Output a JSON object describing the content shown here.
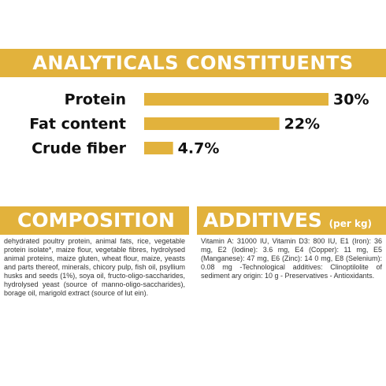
{
  "chart_data": {
    "type": "bar",
    "orientation": "horizontal",
    "title": "ANALYTICALS CONSTITUENTS",
    "categories": [
      "Protein",
      "Fat content",
      "Crude fiber"
    ],
    "values": [
      30,
      22,
      4.7
    ],
    "value_labels": [
      "30%",
      "22%",
      "4.7%"
    ],
    "color": "#e2b23c"
  },
  "composition": {
    "title": "COMPOSITION",
    "text": "dehydrated poultry protein, animal fats, rice, vegetable protein isolate*, maize flour, vegetable fibres, hydrolysed animal proteins, maize gluten, wheat flour, maize, yeasts and parts thereof, minerals, chicory pulp, fish oil, psyllium husks and seeds (1%), soya oil, fructo-oligo-saccharides, hydrolysed yeast (source of manno-oligo-saccharides), borage oil, marigold extract (source of lut ein)."
  },
  "additives": {
    "title": "ADDITIVES",
    "subtitle": "(per kg)",
    "text": "Vitamin A: 31000 IU, Vitamin D3: 800 IU, E1 (Iron): 36 mg, E2 (Iodine): 3.6 mg, E4 (Copper): 11 mg, E5 (Manganese): 47 mg, E6 (Zinc): 14 0 mg, E8 (Selenium): 0.08 mg -Technological additives: Clinoptilolite of sediment ary origin: 10 g - Preservatives - Antioxidants."
  }
}
